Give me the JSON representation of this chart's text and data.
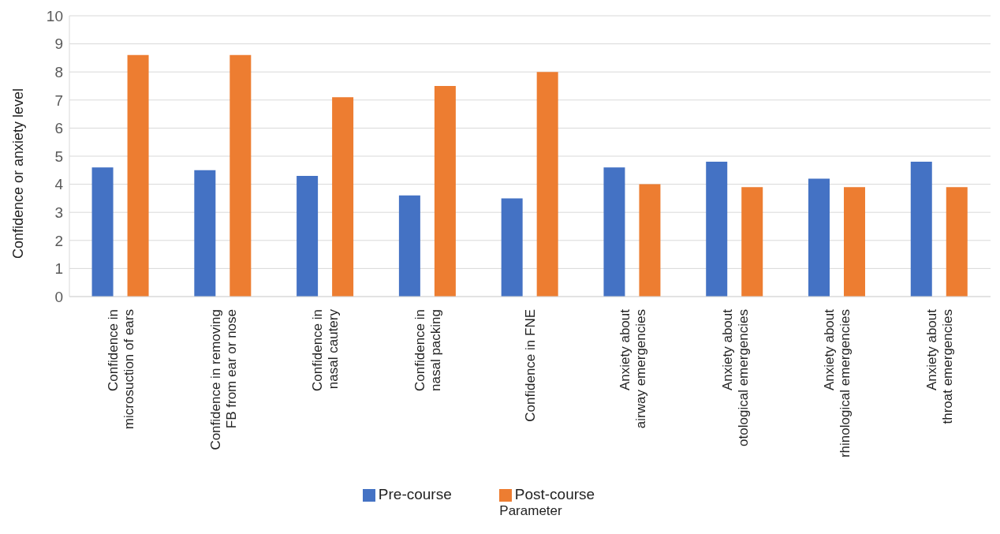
{
  "chart_data": {
    "type": "bar",
    "xlabel": "Parameter",
    "ylabel": "Confidence or anxiety level",
    "categories": [
      "Confidence in\nmicrosuction of ears",
      "Confidence in removing\nFB from ear or nose",
      "Confidence in\nnasal cautery",
      "Confidence in\nnasal packing",
      "Confidence in FNE",
      "Anxiety about\nairway emergencies",
      "Anxiety about\notological emergencies",
      "Anxiety about\nrhinological emergencies",
      "Anxiety about\nthroat emergencies"
    ],
    "series": [
      {
        "name": "Pre-course",
        "color": "#4472c4",
        "values": [
          4.6,
          4.5,
          4.3,
          3.6,
          3.5,
          4.6,
          4.8,
          4.2,
          4.8
        ]
      },
      {
        "name": "Post-course",
        "color": "#ed7d31",
        "values": [
          8.6,
          8.6,
          7.1,
          7.5,
          8.0,
          4.0,
          3.9,
          3.9,
          3.9
        ]
      }
    ],
    "ylim": [
      0,
      10
    ],
    "yticks": [
      0,
      1,
      2,
      3,
      4,
      5,
      6,
      7,
      8,
      9,
      10
    ],
    "grid": "y",
    "legend": "bottom"
  }
}
